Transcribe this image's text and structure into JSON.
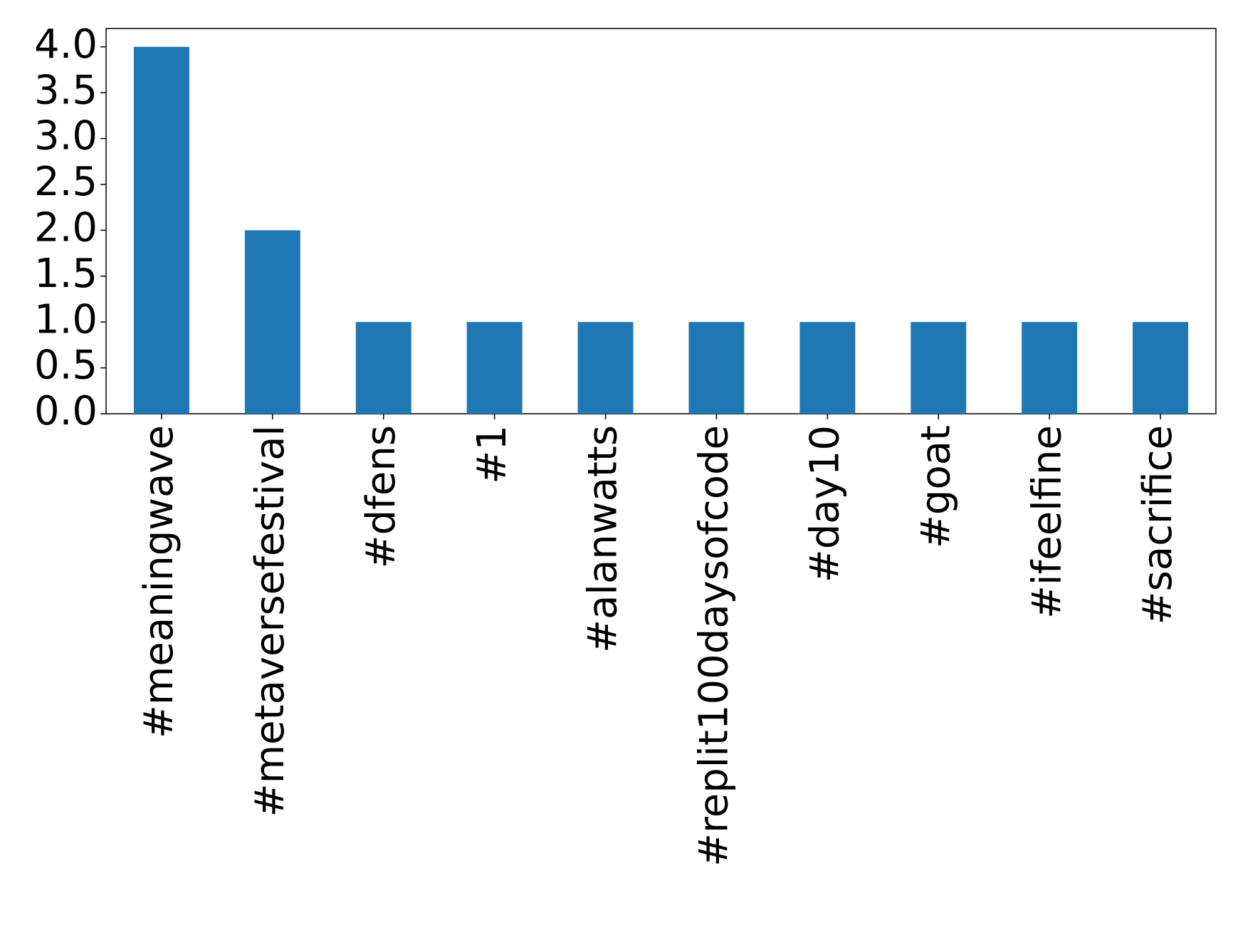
{
  "chart_data": {
    "type": "bar",
    "categories": [
      "#meaningwave",
      "#metaversefestival",
      "#dfens",
      "#1",
      "#alanwatts",
      "#replit100daysofcode",
      "#day10",
      "#goat",
      "#ifeelfine",
      "#sacrifice"
    ],
    "values": [
      4,
      2,
      1,
      1,
      1,
      1,
      1,
      1,
      1,
      1
    ],
    "color": "#1f77b4",
    "ylim": [
      0,
      4.2
    ],
    "yticks": [
      {
        "value": 0,
        "label": "0.0"
      },
      {
        "value": 0.5,
        "label": "0.5"
      },
      {
        "value": 1,
        "label": "1.0"
      },
      {
        "value": 1.5,
        "label": "1.5"
      },
      {
        "value": 2,
        "label": "2.0"
      },
      {
        "value": 2.5,
        "label": "2.5"
      },
      {
        "value": 3,
        "label": "3.0"
      },
      {
        "value": 3.5,
        "label": "3.5"
      },
      {
        "value": 4,
        "label": "4.0"
      }
    ],
    "grid": false
  }
}
